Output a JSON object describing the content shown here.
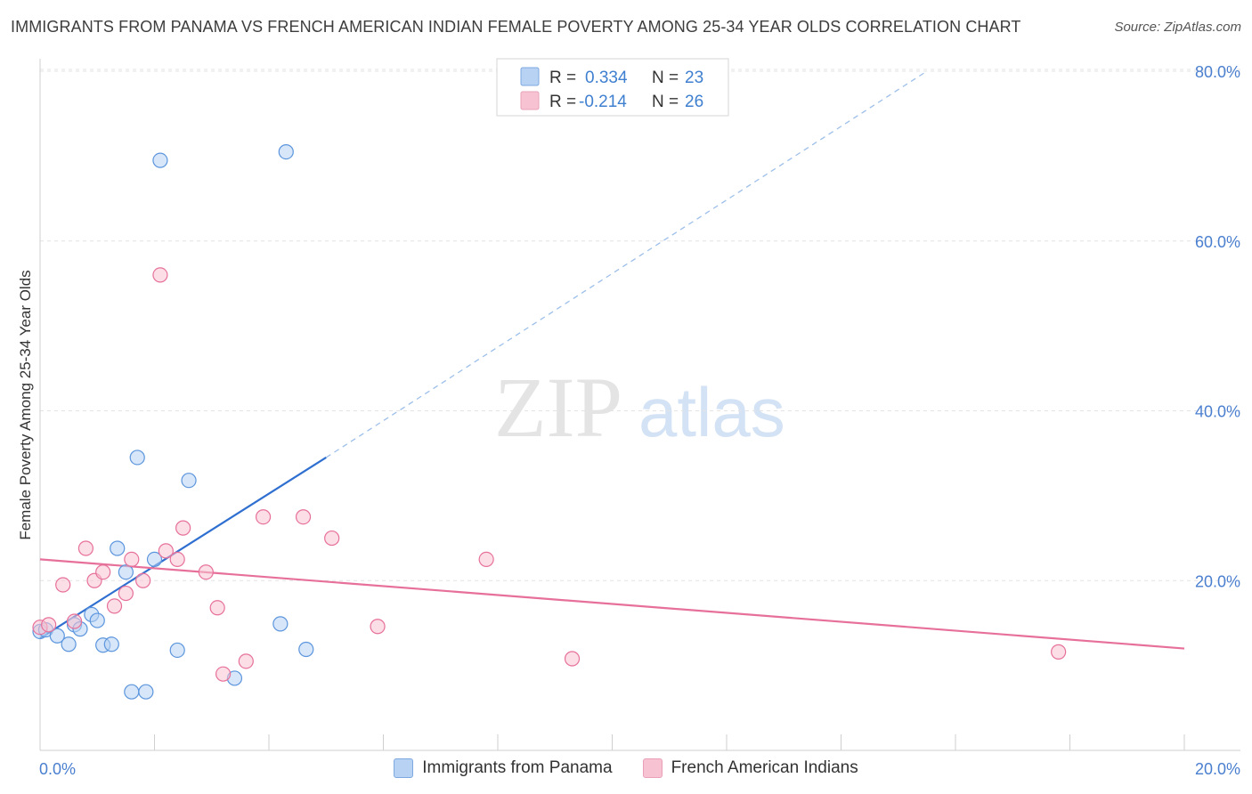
{
  "header": {
    "title": "IMMIGRANTS FROM PANAMA VS FRENCH AMERICAN INDIAN FEMALE POVERTY AMONG 25-34 YEAR OLDS CORRELATION CHART",
    "source": "Source: ZipAtlas.com"
  },
  "watermark": {
    "zip": "ZIP",
    "atlas": "atlas"
  },
  "stats_legend": [
    {
      "r_label": "R =",
      "r_value": "0.334",
      "n_label": "N =",
      "n_value": "23"
    },
    {
      "r_label": "R =",
      "r_value": "-0.214",
      "n_label": "N =",
      "n_value": "26"
    }
  ],
  "chart_data": {
    "type": "scatter",
    "title": "IMMIGRANTS FROM PANAMA VS FRENCH AMERICAN INDIAN FEMALE POVERTY AMONG 25-34 YEAR OLDS CORRELATION CHART",
    "xlabel": "",
    "ylabel": "Female Poverty Among 25-34 Year Olds",
    "xlim": [
      0,
      20
    ],
    "ylim": [
      0,
      83
    ],
    "x_tick_labels": [
      "0.0%",
      "20.0%"
    ],
    "y_ticks": [
      20,
      40,
      60,
      80
    ],
    "y_tick_labels": [
      "20.0%",
      "40.0%",
      "60.0%",
      "80.0%"
    ],
    "grid": true,
    "colors": {
      "blue": "#5b95dd",
      "blue_fill": "#b7d2f3",
      "pink": "#e7709a",
      "pink_fill": "#f7c3d2",
      "axis_text": "#4a7fcf"
    },
    "series": [
      {
        "name": "Immigrants from Panama",
        "color": "blue",
        "r": 0.334,
        "n": 23,
        "points": [
          [
            0.0,
            14.0
          ],
          [
            0.1,
            14.2
          ],
          [
            0.3,
            13.5
          ],
          [
            0.5,
            12.5
          ],
          [
            0.6,
            14.8
          ],
          [
            0.7,
            14.3
          ],
          [
            0.9,
            16.0
          ],
          [
            1.0,
            15.3
          ],
          [
            1.1,
            12.4
          ],
          [
            1.25,
            12.5
          ],
          [
            1.35,
            23.8
          ],
          [
            1.5,
            21.0
          ],
          [
            1.6,
            6.9
          ],
          [
            1.7,
            34.5
          ],
          [
            1.85,
            6.9
          ],
          [
            2.0,
            22.5
          ],
          [
            2.1,
            69.5
          ],
          [
            2.4,
            11.8
          ],
          [
            2.6,
            31.8
          ],
          [
            3.4,
            8.5
          ],
          [
            4.2,
            14.9
          ],
          [
            4.3,
            70.5
          ],
          [
            4.65,
            11.9
          ]
        ],
        "trend": {
          "x1": 0.0,
          "y1": 13.2,
          "x2": 5.0,
          "y2": 34.5,
          "dash_x2": 15.5,
          "dash_y2": 80.0
        }
      },
      {
        "name": "French American Indians",
        "color": "pink",
        "r": -0.214,
        "n": 26,
        "points": [
          [
            0.0,
            14.5
          ],
          [
            0.15,
            14.8
          ],
          [
            0.4,
            19.5
          ],
          [
            0.6,
            15.2
          ],
          [
            0.8,
            23.8
          ],
          [
            0.95,
            20.0
          ],
          [
            1.1,
            21.0
          ],
          [
            1.3,
            17.0
          ],
          [
            1.5,
            18.5
          ],
          [
            1.6,
            22.5
          ],
          [
            1.8,
            20.0
          ],
          [
            2.1,
            56.0
          ],
          [
            2.2,
            23.5
          ],
          [
            2.4,
            22.5
          ],
          [
            2.5,
            26.2
          ],
          [
            2.9,
            21.0
          ],
          [
            3.1,
            16.8
          ],
          [
            3.2,
            9.0
          ],
          [
            3.6,
            10.5
          ],
          [
            3.9,
            27.5
          ],
          [
            4.6,
            27.5
          ],
          [
            5.1,
            25.0
          ],
          [
            5.9,
            14.6
          ],
          [
            7.8,
            22.5
          ],
          [
            9.3,
            10.8
          ],
          [
            17.8,
            11.6
          ]
        ],
        "trend": {
          "x1": 0.0,
          "y1": 22.5,
          "x2": 20.0,
          "y2": 12.0
        }
      }
    ]
  }
}
